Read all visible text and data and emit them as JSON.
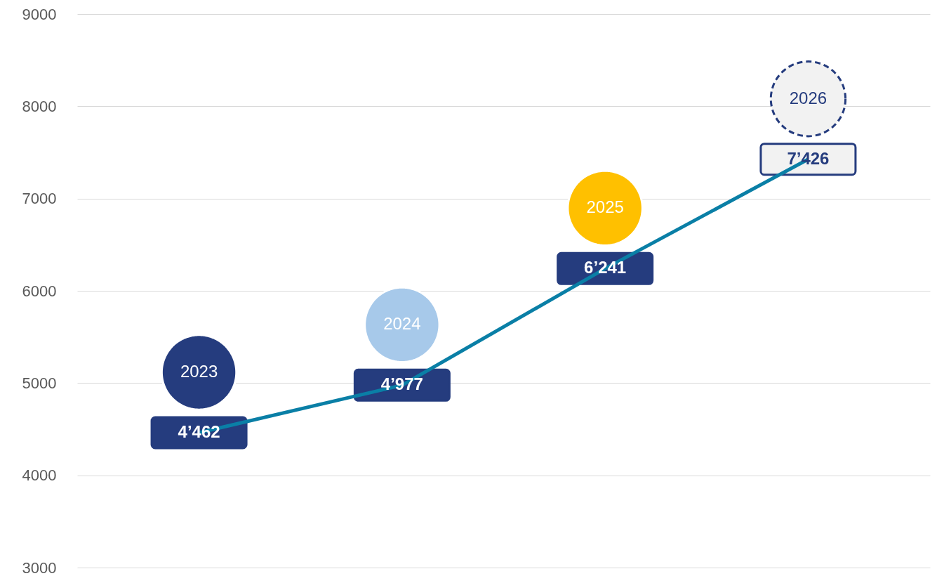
{
  "chart_data": {
    "type": "line",
    "categories": [
      "2023",
      "2024",
      "2025",
      "2026"
    ],
    "series": [
      {
        "color": "#0a7fa6",
        "values": [
          4462,
          4977,
          6241,
          7426
        ]
      }
    ],
    "colors": [
      "#253c7e",
      "#a7c9ea",
      "#ffc000",
      "#f2f2f2"
    ],
    "value_labels": [
      "4’462",
      "4’977",
      "6’241",
      "7’426"
    ],
    "ylim": [
      3000,
      9000
    ],
    "yticks": [
      3000,
      4000,
      5000,
      6000,
      7000,
      8000,
      9000
    ],
    "grid": "y"
  }
}
